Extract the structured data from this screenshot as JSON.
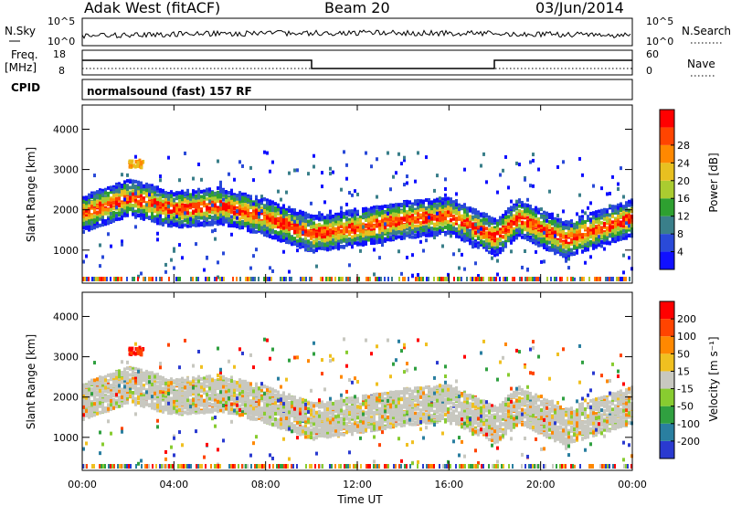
{
  "header": {
    "radar": "Adak West (fitACF)",
    "beam": "Beam 20",
    "date": "03/Jun/2014"
  },
  "noise_panel": {
    "left_label": "N.Sky",
    "right_label": "N.Search",
    "left_ticks": [
      "10^5",
      "10^0"
    ],
    "right_ticks": [
      "10^5",
      "10^0"
    ]
  },
  "freq_panel": {
    "left_label_1": "Freq.",
    "left_label_2": "[MHz]",
    "cpid_label": "CPID",
    "right_label": "Nave",
    "left_ticks": [
      "18",
      "8"
    ],
    "right_ticks": [
      "60",
      "0"
    ]
  },
  "cpid_text": "normalsound (fast) 157 RF",
  "chart_data": [
    {
      "type": "heatmap",
      "name": "Power",
      "ylabel": "Slant Range [km]",
      "xlabel": "Time UT",
      "x_ticks": [
        "00:00",
        "04:00",
        "08:00",
        "12:00",
        "16:00",
        "20:00",
        "00:00"
      ],
      "y_ticks": [
        "1000",
        "2000",
        "3000",
        "4000"
      ],
      "ylim": [
        180,
        4600
      ],
      "xlim_hours": [
        0,
        24
      ],
      "colorbar": {
        "label": "Power [dB]",
        "ticks": [
          "4",
          "8",
          "12",
          "16",
          "20",
          "24",
          "28"
        ],
        "colors": [
          "#1010ff",
          "#2a4ad8",
          "#3a7f8a",
          "#2ea030",
          "#aacc30",
          "#e8c020",
          "#ff8800",
          "#ff4400",
          "#ff0000"
        ]
      },
      "echo_band_km": [
        {
          "t": 0,
          "r": 1900
        },
        {
          "t": 2,
          "r": 2300
        },
        {
          "t": 4,
          "r": 2000
        },
        {
          "t": 6,
          "r": 2100
        },
        {
          "t": 8,
          "r": 1800
        },
        {
          "t": 10,
          "r": 1400
        },
        {
          "t": 12,
          "r": 1550
        },
        {
          "t": 14,
          "r": 1750
        },
        {
          "t": 16,
          "r": 1850
        },
        {
          "t": 18,
          "r": 1300
        },
        {
          "t": 19,
          "r": 1800
        },
        {
          "t": 21,
          "r": 1250
        },
        {
          "t": 24,
          "r": 1800
        }
      ]
    },
    {
      "type": "heatmap",
      "name": "Velocity",
      "ylabel": "Slant Range [km]",
      "xlabel": "Time UT",
      "x_ticks": [
        "00:00",
        "04:00",
        "08:00",
        "12:00",
        "16:00",
        "20:00",
        "00:00"
      ],
      "y_ticks": [
        "1000",
        "2000",
        "3000",
        "4000"
      ],
      "ylim": [
        180,
        4600
      ],
      "xlim_hours": [
        0,
        24
      ],
      "colorbar": {
        "label": "Velocity [m s⁻¹]",
        "ticks": [
          "200",
          "100",
          "50",
          "15",
          "-15",
          "-50",
          "-100",
          "-200"
        ],
        "colors": [
          "#2a3ad0",
          "#2a7fa0",
          "#30a040",
          "#88cc30",
          "#c8c8c0",
          "#f0c020",
          "#ff8800",
          "#ff4400",
          "#ff0000"
        ]
      }
    }
  ]
}
